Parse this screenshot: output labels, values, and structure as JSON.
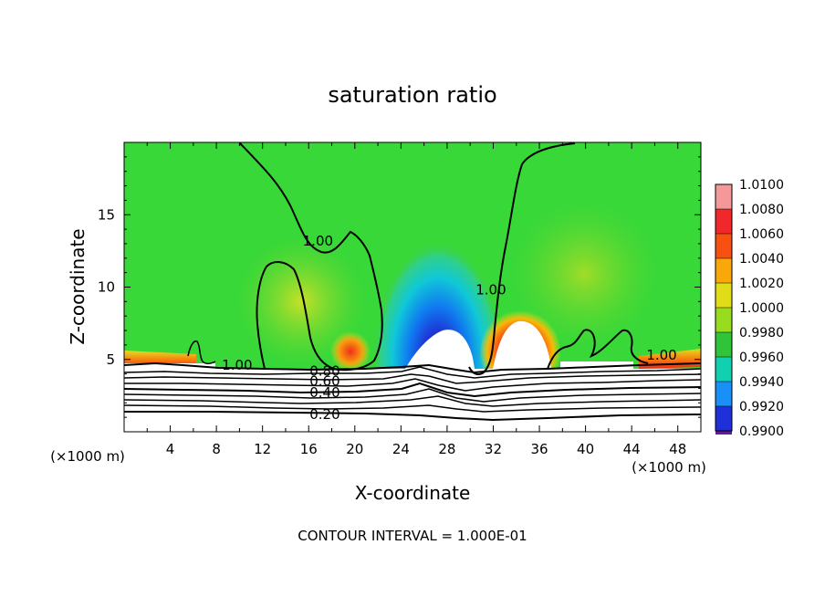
{
  "chart_data": {
    "type": "heatmap",
    "title": "saturation ratio",
    "xlabel": "X-coordinate",
    "ylabel": "Z-coordinate",
    "x_units": "(×1000 m)",
    "xlim": [
      0,
      50
    ],
    "ylim": [
      0,
      20
    ],
    "x_ticks": [
      "4",
      "8",
      "12",
      "16",
      "20",
      "24",
      "28",
      "32",
      "36",
      "40",
      "44",
      "48"
    ],
    "y_ticks": [
      "5",
      "10",
      "15"
    ],
    "footer": "CONTOUR INTERVAL = 1.000E-01",
    "colorbar": {
      "levels": [
        "1.0100",
        "1.0080",
        "1.0060",
        "1.0040",
        "1.0020",
        "1.0000",
        "0.9980",
        "0.9960",
        "0.9940",
        "0.9920",
        "0.9900"
      ],
      "colors": [
        "#f4989a",
        "#f0282c",
        "#f85010",
        "#f8a808",
        "#e0dc18",
        "#98dc20",
        "#30c438",
        "#10d0b0",
        "#1890f8",
        "#2030d8",
        "#6818a0"
      ]
    },
    "contour_labels": [
      {
        "text": "1.00",
        "x": 16.8,
        "z": 13.2
      },
      {
        "text": "1.00",
        "x": 31.8,
        "z": 9.8
      },
      {
        "text": "1.00",
        "x": 9.8,
        "z": 4.6
      },
      {
        "text": "1.00",
        "x": 46.6,
        "z": 5.3
      },
      {
        "text": "0.80",
        "x": 17.4,
        "z": 4.2
      },
      {
        "text": "0.60",
        "x": 17.4,
        "z": 3.5
      },
      {
        "text": "0.40",
        "x": 17.4,
        "z": 2.7
      },
      {
        "text": "0.20",
        "x": 17.4,
        "z": 1.2
      }
    ]
  }
}
